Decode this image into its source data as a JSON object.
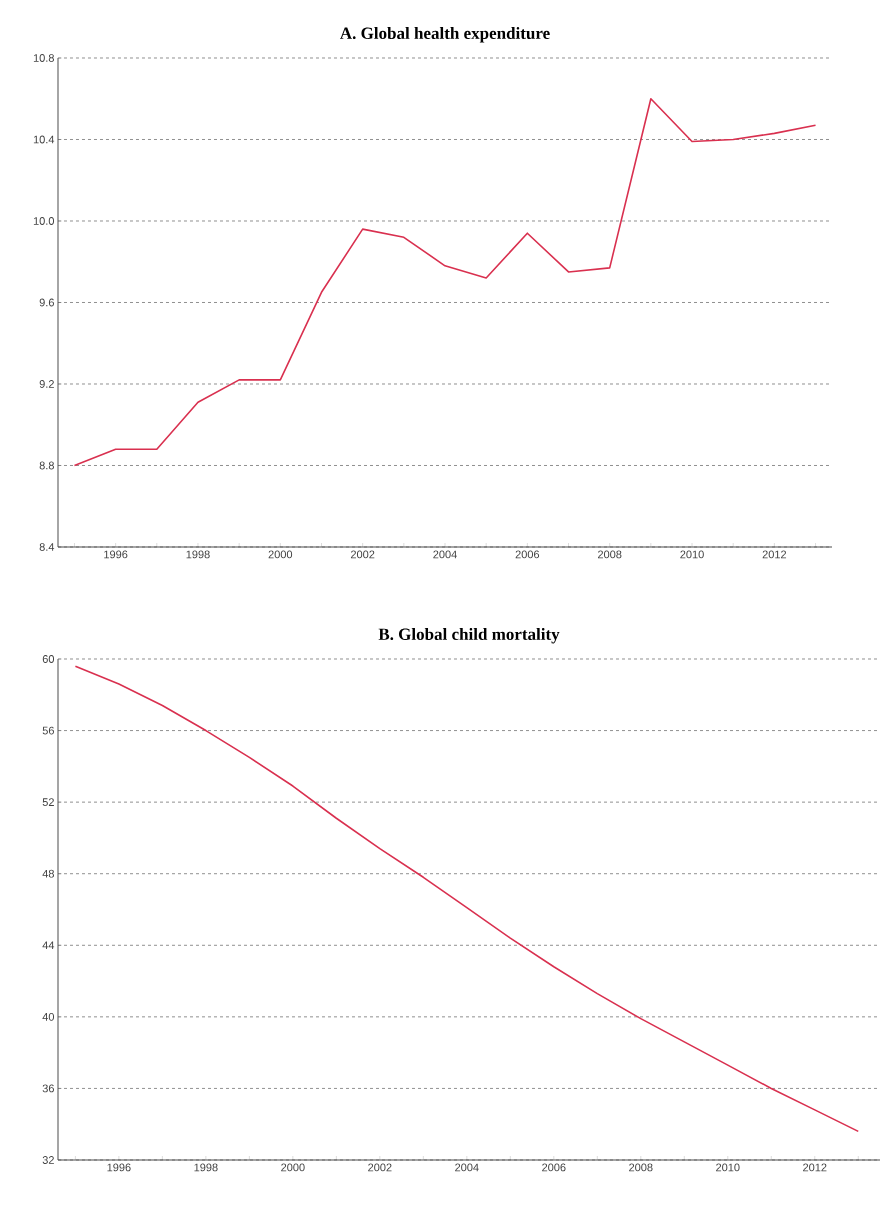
{
  "chart_data": [
    {
      "type": "line",
      "title": "A. Global health expenditure",
      "x": [
        1995,
        1996,
        1997,
        1998,
        1999,
        2000,
        2001,
        2002,
        2003,
        2004,
        2005,
        2006,
        2007,
        2008,
        2009,
        2010,
        2011,
        2012,
        2013
      ],
      "series": [
        {
          "color": "#d9304f",
          "values": [
            8.8,
            8.88,
            8.88,
            9.11,
            9.22,
            9.22,
            9.65,
            9.96,
            9.92,
            9.78,
            9.72,
            9.94,
            9.75,
            9.77,
            10.6,
            10.39,
            10.4,
            10.43,
            10.47
          ]
        }
      ],
      "xlim": [
        1994.6,
        2013.4
      ],
      "ylim": [
        8.4,
        10.8
      ],
      "xticks": [
        {
          "value": 1995,
          "label": null
        },
        1996,
        {
          "value": 1997,
          "label": null
        },
        1998,
        {
          "value": 1999,
          "label": null
        },
        2000,
        {
          "value": 2001,
          "label": null
        },
        2002,
        {
          "value": 2003,
          "label": null
        },
        2004,
        {
          "value": 2005,
          "label": null
        },
        2006,
        {
          "value": 2007,
          "label": null
        },
        2008,
        {
          "value": 2009,
          "label": null
        },
        2010,
        {
          "value": 2011,
          "label": null
        },
        2012,
        {
          "value": 2013,
          "label": null
        }
      ],
      "yticks": [
        8.4,
        8.8,
        9.2,
        9.6,
        {
          "value": 10.0,
          "label": "10.0"
        },
        10.4,
        10.8
      ],
      "grid": "y",
      "line_style": "solid"
    },
    {
      "type": "line",
      "title": "B. Global child mortality",
      "x": [
        1995,
        1996,
        1997,
        1998,
        1999,
        2000,
        2001,
        2002,
        2003,
        2004,
        2005,
        2006,
        2007,
        2008,
        2009,
        2010,
        2011,
        2012,
        2013
      ],
      "series": [
        {
          "color": "#d9304f",
          "values": [
            59.6,
            58.6,
            57.4,
            56.0,
            54.5,
            52.9,
            51.1,
            49.4,
            47.8,
            46.1,
            44.4,
            42.8,
            41.3,
            39.9,
            38.6,
            37.3,
            36.0,
            34.8,
            33.6
          ]
        }
      ],
      "xlim": [
        1994.6,
        2013.5
      ],
      "ylim": [
        32,
        60
      ],
      "xticks": [
        {
          "value": 1995,
          "label": null
        },
        1996,
        {
          "value": 1997,
          "label": null
        },
        1998,
        {
          "value": 1999,
          "label": null
        },
        2000,
        {
          "value": 2001,
          "label": null
        },
        2002,
        {
          "value": 2003,
          "label": null
        },
        2004,
        {
          "value": 2005,
          "label": null
        },
        2006,
        {
          "value": 2007,
          "label": null
        },
        2008,
        {
          "value": 2009,
          "label": null
        },
        2010,
        {
          "value": 2011,
          "label": null
        },
        2012,
        {
          "value": 2013,
          "label": null
        }
      ],
      "yticks": [
        32,
        36,
        40,
        44,
        48,
        52,
        56,
        60
      ],
      "grid": "y",
      "line_style": "solid"
    }
  ]
}
